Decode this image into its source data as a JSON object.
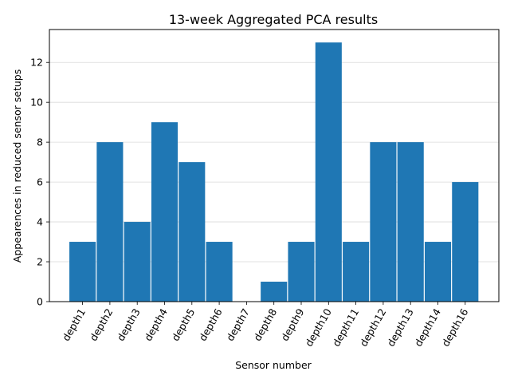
{
  "chart_data": {
    "type": "bar",
    "title": "13-week Aggregated PCA results",
    "xlabel": "Sensor number",
    "ylabel": "Appearences in reduced sensor setups",
    "categories": [
      "depth1",
      "depth2",
      "depth3",
      "depth4",
      "depth5",
      "depth6",
      "depth7",
      "depth8",
      "depth9",
      "depth10",
      "depth11",
      "depth12",
      "depth13",
      "depth14",
      "depth16"
    ],
    "values": [
      3,
      8,
      4,
      9,
      7,
      3,
      0,
      1,
      3,
      13,
      3,
      8,
      8,
      3,
      6
    ],
    "ylim": [
      0,
      13.65
    ],
    "yticks": [
      0,
      2,
      4,
      6,
      8,
      10,
      12
    ],
    "grid": "horizontal",
    "legend": "none",
    "bar_color": "#1f77b4",
    "grid_color": "#d9d9d9"
  }
}
